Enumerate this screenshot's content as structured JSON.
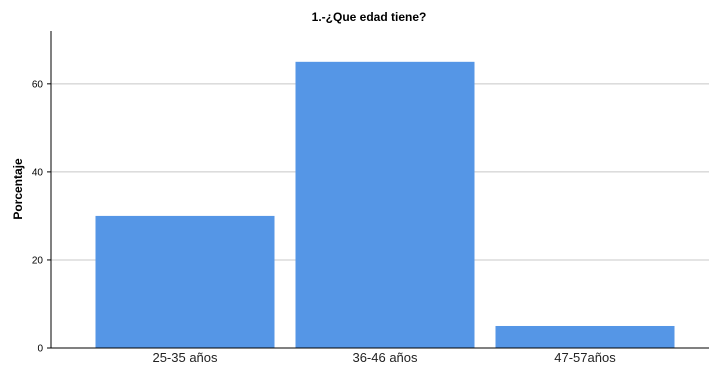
{
  "chart_data": {
    "type": "bar",
    "title": "1.-¿Que edad tiene?",
    "xlabel": "",
    "ylabel": "Porcentaje",
    "categories": [
      "25-35 años",
      "36-46 años",
      "47-57años"
    ],
    "values": [
      30,
      65,
      5
    ],
    "ylim": [
      0,
      72
    ],
    "yticks": [
      0,
      20,
      40,
      60
    ],
    "grid": true,
    "bar_color": "#5596E6",
    "grid_color": "#C8C8C8"
  }
}
